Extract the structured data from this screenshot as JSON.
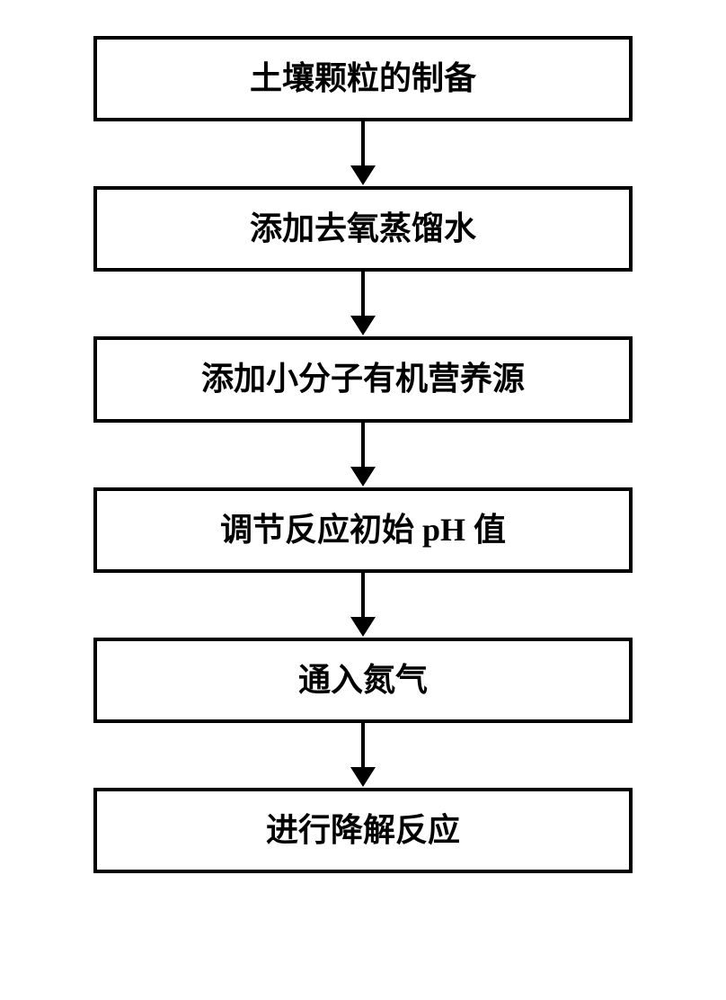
{
  "flowchart": {
    "type": "flowchart",
    "direction": "vertical",
    "box_border_color": "#000000",
    "box_border_width": 4,
    "box_background": "#ffffff",
    "text_color": "#000000",
    "font_size": 36,
    "font_weight": "bold",
    "arrow_color": "#000000",
    "arrow_line_width": 4,
    "arrow_head_width": 28,
    "arrow_head_height": 22,
    "steps": [
      {
        "label": "土壤颗粒的制备"
      },
      {
        "label": "添加去氧蒸馏水"
      },
      {
        "label": "添加小分子有机营养源"
      },
      {
        "label": "调节反应初始 pH 值"
      },
      {
        "label": "通入氮气"
      },
      {
        "label": "进行降解反应"
      }
    ]
  }
}
